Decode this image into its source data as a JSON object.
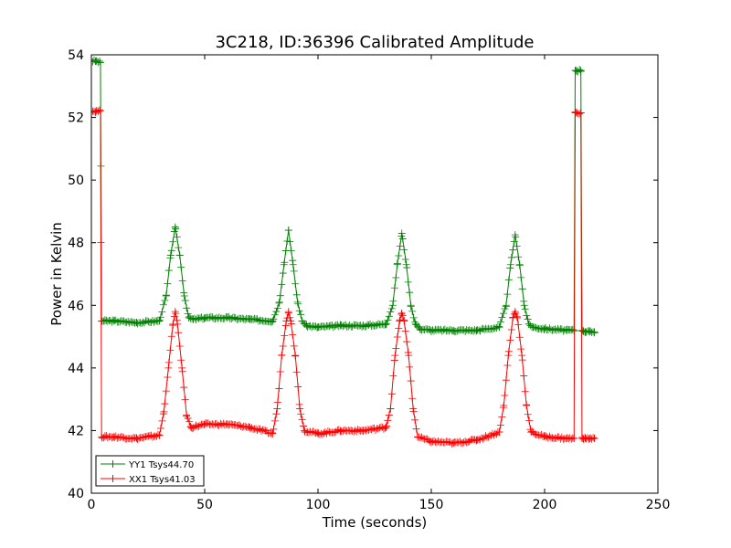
{
  "chart_data": {
    "type": "line",
    "title": "3C218, ID:36396 Calibrated Amplitude",
    "xlabel": "Time (seconds)",
    "ylabel": "Power in Kelvin",
    "xlim": [
      0,
      250
    ],
    "ylim": [
      40,
      54
    ],
    "xticks": [
      "0",
      "50",
      "100",
      "150",
      "200",
      "250"
    ],
    "yticks": [
      "40",
      "42",
      "44",
      "46",
      "48",
      "50",
      "52",
      "54"
    ],
    "grid": false,
    "legend_position": "lower-left",
    "marker": "plus",
    "series": [
      {
        "name": "YY1 Tsys44.70",
        "color": "#008000",
        "x": [
          0,
          2,
          4,
          4.5,
          6,
          10,
          20,
          30,
          33,
          35,
          37,
          39,
          41,
          43,
          45,
          50,
          60,
          70,
          80,
          83,
          85,
          87,
          89,
          91,
          93,
          95,
          100,
          110,
          120,
          130,
          133,
          135,
          137,
          139,
          141,
          143,
          145,
          150,
          160,
          170,
          180,
          183,
          185,
          187,
          189,
          191,
          193,
          195,
          200,
          210,
          213,
          213.5,
          214,
          216,
          216.5,
          217,
          218,
          220,
          222
        ],
        "y": [
          53.8,
          53.8,
          53.75,
          45.5,
          45.5,
          45.5,
          45.45,
          45.5,
          46.3,
          47.6,
          48.5,
          47.6,
          46.3,
          45.6,
          45.55,
          45.6,
          45.6,
          45.55,
          45.5,
          46.1,
          47.3,
          48.4,
          47.3,
          46.1,
          45.5,
          45.35,
          45.3,
          45.35,
          45.35,
          45.4,
          46.0,
          47.3,
          48.3,
          47.3,
          46.0,
          45.4,
          45.25,
          45.2,
          45.2,
          45.2,
          45.3,
          46.0,
          47.3,
          48.25,
          47.3,
          46.0,
          45.4,
          45.3,
          45.25,
          45.2,
          45.2,
          53.5,
          53.5,
          53.5,
          45.2,
          45.2,
          45.15,
          45.15,
          45.15
        ]
      },
      {
        "name": "XX1 Tsys41.03",
        "color": "#ff0000",
        "x": [
          0,
          2,
          4,
          4.5,
          6,
          10,
          20,
          30,
          32,
          34,
          36,
          37,
          38,
          40,
          42,
          44,
          50,
          60,
          70,
          80,
          82,
          84,
          86,
          87,
          88,
          90,
          92,
          94,
          100,
          110,
          120,
          130,
          132,
          134,
          136,
          137,
          138,
          140,
          142,
          144,
          150,
          160,
          170,
          180,
          182,
          184,
          186,
          187,
          188,
          190,
          192,
          194,
          200,
          210,
          213,
          213.5,
          214,
          216,
          216.5,
          217,
          218,
          220,
          222
        ],
        "y": [
          52.2,
          52.2,
          52.2,
          41.8,
          41.8,
          41.8,
          41.75,
          41.85,
          42.6,
          44.0,
          45.4,
          45.8,
          45.4,
          44.0,
          42.5,
          42.1,
          42.2,
          42.2,
          42.1,
          41.9,
          42.7,
          44.4,
          45.5,
          45.8,
          45.5,
          44.4,
          42.7,
          42.0,
          41.9,
          42.0,
          42.0,
          42.1,
          42.7,
          44.4,
          45.5,
          45.75,
          45.5,
          44.4,
          42.7,
          41.8,
          41.65,
          41.6,
          41.7,
          41.95,
          42.8,
          44.4,
          45.6,
          45.8,
          45.6,
          44.4,
          42.8,
          41.95,
          41.8,
          41.75,
          41.75,
          52.15,
          52.15,
          52.15,
          41.75,
          41.75,
          41.75,
          41.75,
          41.75
        ]
      }
    ]
  }
}
